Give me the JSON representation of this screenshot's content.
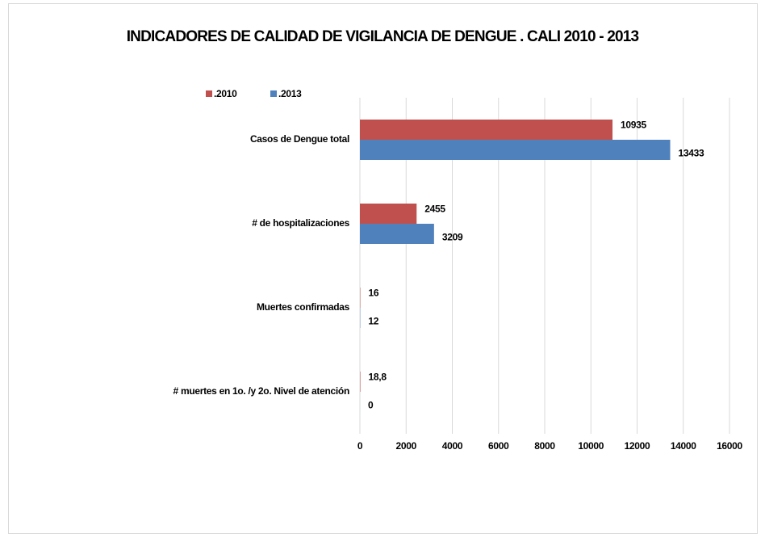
{
  "chart_data": {
    "type": "bar",
    "orientation": "horizontal",
    "title": "INDICADORES DE CALIDAD DE VIGILANCIA DE DENGUE . CALI 2010 - 2013",
    "categories": [
      "Casos de Dengue total",
      "# de hospitalizaciones",
      "Muertes confirmadas",
      "# muertes en 1o. /y 2o. Nivel de atención"
    ],
    "series": [
      {
        "name": ".2010",
        "color": "#c0504d",
        "values": [
          10935,
          2455,
          16,
          18.8
        ],
        "value_labels": [
          "10935",
          "2455",
          "16",
          "18,8"
        ]
      },
      {
        "name": ".2013",
        "color": "#4f81bd",
        "values": [
          13433,
          3209,
          12,
          0
        ]
      }
    ],
    "xlim": [
      0,
      16000
    ],
    "xticks": [
      0,
      2000,
      4000,
      6000,
      8000,
      10000,
      12000,
      14000,
      16000
    ],
    "grid": true,
    "legend": "top-left"
  }
}
